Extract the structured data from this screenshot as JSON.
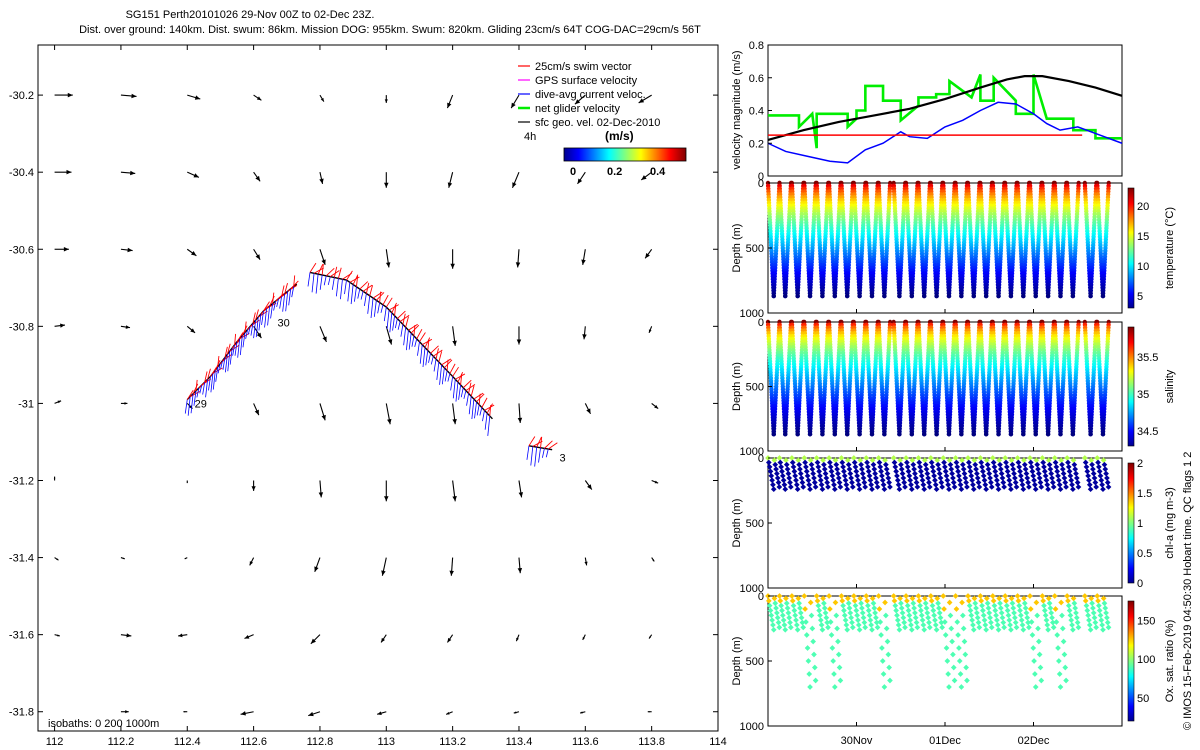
{
  "header": {
    "line1": "SG151 Perth20101026 29-Nov 00Z to 02-Dec 23Z.",
    "line2": "Dist. over ground: 140km. Dist. swum: 86km. Mission DOG: 955km. Swum: 820km. Gliding 23cm/s 64T COG-DAC=29cm/s 56T"
  },
  "colors": {
    "swim": "#ff0000",
    "gps": "#ff00ff",
    "dac": "#0000ff",
    "net": "#00ee00",
    "geo": "#000000"
  },
  "chart_data": [
    {
      "name": "track_map",
      "type": "scatter",
      "xlim": [
        111.95,
        114.0
      ],
      "ylim": [
        -31.85,
        -30.07
      ],
      "xticks": [
        112,
        112.2,
        112.4,
        112.6,
        112.8,
        113,
        113.2,
        113.4,
        113.6,
        113.8,
        114
      ],
      "xtick_labels": [
        "112",
        "112.2",
        "112.4",
        "112.6",
        "112.8",
        "113",
        "113.2",
        "113.4",
        "113.6",
        "113.8",
        "114"
      ],
      "yticks": [
        -30.2,
        -30.4,
        -30.6,
        -30.8,
        -31,
        -31.2,
        -31.4,
        -31.6,
        -31.8
      ],
      "ytick_labels": [
        "-30.2",
        "-30.4",
        "-30.6",
        "-30.8",
        "-31",
        "-31.2",
        "-31.4",
        "-31.6",
        "-31.8"
      ],
      "legend": [
        {
          "label": "25cm/s swim vector",
          "color": "#ff0000"
        },
        {
          "label": "GPS surface velocity",
          "color": "#ff00ff"
        },
        {
          "label": "dive-avg current veloc.",
          "color": "#0000ff"
        },
        {
          "label": "net glider velocity",
          "color": "#00ee00"
        },
        {
          "label": "sfc geo. vel. 02-Dec-2010",
          "color": "#000000"
        }
      ],
      "legend_position": "top-right",
      "colorbar": {
        "label": "(m/s)",
        "ticks": [
          "0",
          "0.2",
          "0.4"
        ],
        "note": "4h"
      },
      "isobath_note": "isobaths: 0    200   1000m",
      "track_segments": [
        {
          "points": [
            [
              112.4,
              -30.99
            ],
            [
              112.47,
              -30.93
            ],
            [
              112.55,
              -30.84
            ],
            [
              112.63,
              -30.76
            ],
            [
              112.73,
              -30.69
            ]
          ]
        },
        {
          "points": [
            [
              112.77,
              -30.66
            ],
            [
              112.88,
              -30.68
            ],
            [
              113.0,
              -30.75
            ],
            [
              113.1,
              -30.84
            ],
            [
              113.2,
              -30.93
            ],
            [
              113.32,
              -31.04
            ]
          ]
        },
        {
          "points": [
            [
              113.43,
              -31.11
            ],
            [
              113.5,
              -31.12
            ]
          ]
        }
      ],
      "day_labels": [
        {
          "text": "29",
          "lon": 112.41,
          "lat": -31.0
        },
        {
          "text": "30",
          "lon": 112.66,
          "lat": -30.79
        },
        {
          "text": "3",
          "lon": 113.51,
          "lat": -31.14
        }
      ],
      "geo_vectors": [
        {
          "lon": 112.0,
          "lat": -30.2,
          "u": 0.14,
          "v": 0.0
        },
        {
          "lon": 112.2,
          "lat": -30.2,
          "u": 0.12,
          "v": -0.01
        },
        {
          "lon": 112.4,
          "lat": -30.2,
          "u": 0.1,
          "v": -0.03
        },
        {
          "lon": 112.6,
          "lat": -30.2,
          "u": 0.06,
          "v": -0.04
        },
        {
          "lon": 112.8,
          "lat": -30.2,
          "u": 0.03,
          "v": -0.05
        },
        {
          "lon": 113.0,
          "lat": -30.2,
          "u": 0.0,
          "v": -0.06
        },
        {
          "lon": 113.2,
          "lat": -30.2,
          "u": -0.04,
          "v": -0.1
        },
        {
          "lon": 113.4,
          "lat": -30.2,
          "u": -0.06,
          "v": -0.1
        },
        {
          "lon": 113.6,
          "lat": -30.2,
          "u": -0.08,
          "v": -0.07
        },
        {
          "lon": 113.8,
          "lat": -30.2,
          "u": -0.1,
          "v": -0.06
        },
        {
          "lon": 112.0,
          "lat": -30.4,
          "u": 0.13,
          "v": 0.0
        },
        {
          "lon": 112.2,
          "lat": -30.4,
          "u": 0.11,
          "v": -0.01
        },
        {
          "lon": 112.4,
          "lat": -30.4,
          "u": 0.09,
          "v": -0.04
        },
        {
          "lon": 112.6,
          "lat": -30.4,
          "u": 0.05,
          "v": -0.07
        },
        {
          "lon": 112.8,
          "lat": -30.4,
          "u": 0.02,
          "v": -0.09
        },
        {
          "lon": 113.0,
          "lat": -30.4,
          "u": 0.0,
          "v": -0.12
        },
        {
          "lon": 113.2,
          "lat": -30.4,
          "u": -0.03,
          "v": -0.12
        },
        {
          "lon": 113.4,
          "lat": -30.4,
          "u": -0.05,
          "v": -0.12
        },
        {
          "lon": 113.6,
          "lat": -30.4,
          "u": -0.06,
          "v": -0.09
        },
        {
          "lon": 113.8,
          "lat": -30.4,
          "u": -0.08,
          "v": -0.06
        },
        {
          "lon": 112.0,
          "lat": -30.6,
          "u": 0.11,
          "v": 0.0
        },
        {
          "lon": 112.2,
          "lat": -30.6,
          "u": 0.09,
          "v": -0.01
        },
        {
          "lon": 112.4,
          "lat": -30.6,
          "u": 0.07,
          "v": -0.05
        },
        {
          "lon": 112.6,
          "lat": -30.6,
          "u": 0.05,
          "v": -0.08
        },
        {
          "lon": 112.8,
          "lat": -30.6,
          "u": 0.04,
          "v": -0.12
        },
        {
          "lon": 113.0,
          "lat": -30.6,
          "u": 0.02,
          "v": -0.14
        },
        {
          "lon": 113.2,
          "lat": -30.6,
          "u": 0.0,
          "v": -0.15
        },
        {
          "lon": 113.4,
          "lat": -30.6,
          "u": -0.01,
          "v": -0.14
        },
        {
          "lon": 113.6,
          "lat": -30.6,
          "u": -0.02,
          "v": -0.12
        },
        {
          "lon": 113.8,
          "lat": -30.6,
          "u": -0.05,
          "v": -0.07
        },
        {
          "lon": 112.0,
          "lat": -30.8,
          "u": 0.08,
          "v": 0.01
        },
        {
          "lon": 112.2,
          "lat": -30.8,
          "u": 0.07,
          "v": -0.01
        },
        {
          "lon": 112.4,
          "lat": -30.8,
          "u": 0.06,
          "v": -0.05
        },
        {
          "lon": 112.6,
          "lat": -30.8,
          "u": 0.06,
          "v": -0.09
        },
        {
          "lon": 112.8,
          "lat": -30.8,
          "u": 0.05,
          "v": -0.12
        },
        {
          "lon": 113.0,
          "lat": -30.8,
          "u": 0.04,
          "v": -0.14
        },
        {
          "lon": 113.2,
          "lat": -30.8,
          "u": 0.02,
          "v": -0.15
        },
        {
          "lon": 113.4,
          "lat": -30.8,
          "u": 0.0,
          "v": -0.14
        },
        {
          "lon": 113.6,
          "lat": -30.8,
          "u": -0.01,
          "v": -0.1
        },
        {
          "lon": 113.8,
          "lat": -30.8,
          "u": -0.02,
          "v": -0.05
        },
        {
          "lon": 112.0,
          "lat": -31.0,
          "u": 0.05,
          "v": 0.02
        },
        {
          "lon": 112.2,
          "lat": -31.0,
          "u": 0.05,
          "v": 0.0
        },
        {
          "lon": 112.4,
          "lat": -31.0,
          "u": 0.04,
          "v": -0.04
        },
        {
          "lon": 112.6,
          "lat": -31.0,
          "u": 0.04,
          "v": -0.09
        },
        {
          "lon": 112.8,
          "lat": -31.0,
          "u": 0.04,
          "v": -0.13
        },
        {
          "lon": 113.0,
          "lat": -31.0,
          "u": 0.03,
          "v": -0.16
        },
        {
          "lon": 113.2,
          "lat": -31.0,
          "u": 0.02,
          "v": -0.16
        },
        {
          "lon": 113.4,
          "lat": -31.0,
          "u": 0.01,
          "v": -0.15
        },
        {
          "lon": 113.6,
          "lat": -31.0,
          "u": 0.04,
          "v": -0.08
        },
        {
          "lon": 113.8,
          "lat": -31.0,
          "u": 0.05,
          "v": -0.04
        },
        {
          "lon": 112.0,
          "lat": -31.2,
          "u": 0.0,
          "v": 0.03
        },
        {
          "lon": 112.2,
          "lat": -31.2,
          "u": 0.0,
          "v": 0.0
        },
        {
          "lon": 112.4,
          "lat": -31.2,
          "u": 0.0,
          "v": -0.02
        },
        {
          "lon": 112.6,
          "lat": -31.2,
          "u": 0.0,
          "v": -0.08
        },
        {
          "lon": 112.8,
          "lat": -31.2,
          "u": 0.01,
          "v": -0.13
        },
        {
          "lon": 113.0,
          "lat": -31.2,
          "u": 0.0,
          "v": -0.16
        },
        {
          "lon": 113.2,
          "lat": -31.2,
          "u": 0.02,
          "v": -0.16
        },
        {
          "lon": 113.4,
          "lat": -31.2,
          "u": 0.02,
          "v": -0.13
        },
        {
          "lon": 113.6,
          "lat": -31.2,
          "u": 0.05,
          "v": -0.07
        },
        {
          "lon": 113.8,
          "lat": -31.2,
          "u": 0.05,
          "v": -0.02
        },
        {
          "lon": 112.0,
          "lat": -31.4,
          "u": 0.03,
          "v": -0.02
        },
        {
          "lon": 112.2,
          "lat": -31.4,
          "u": 0.03,
          "v": -0.01
        },
        {
          "lon": 112.4,
          "lat": -31.4,
          "u": -0.02,
          "v": -0.01
        },
        {
          "lon": 112.6,
          "lat": -31.4,
          "u": -0.03,
          "v": -0.06
        },
        {
          "lon": 112.8,
          "lat": -31.4,
          "u": -0.04,
          "v": -0.11
        },
        {
          "lon": 113.0,
          "lat": -31.4,
          "u": -0.03,
          "v": -0.14
        },
        {
          "lon": 113.2,
          "lat": -31.4,
          "u": -0.01,
          "v": -0.14
        },
        {
          "lon": 113.4,
          "lat": -31.4,
          "u": 0.01,
          "v": -0.12
        },
        {
          "lon": 113.6,
          "lat": -31.4,
          "u": 0.01,
          "v": -0.06
        },
        {
          "lon": 113.8,
          "lat": -31.4,
          "u": 0.02,
          "v": -0.03
        },
        {
          "lon": 112.0,
          "lat": -31.6,
          "u": 0.04,
          "v": -0.01
        },
        {
          "lon": 112.2,
          "lat": -31.6,
          "u": 0.08,
          "v": -0.01
        },
        {
          "lon": 112.4,
          "lat": -31.6,
          "u": -0.07,
          "v": -0.01
        },
        {
          "lon": 112.6,
          "lat": -31.6,
          "u": -0.07,
          "v": -0.03
        },
        {
          "lon": 112.8,
          "lat": -31.6,
          "u": -0.07,
          "v": -0.07
        },
        {
          "lon": 113.0,
          "lat": -31.6,
          "u": -0.04,
          "v": -0.06
        },
        {
          "lon": 113.2,
          "lat": -31.6,
          "u": -0.04,
          "v": -0.06
        },
        {
          "lon": 113.4,
          "lat": -31.6,
          "u": -0.02,
          "v": -0.05
        },
        {
          "lon": 113.6,
          "lat": -31.6,
          "u": -0.02,
          "v": -0.04
        },
        {
          "lon": 113.8,
          "lat": -31.6,
          "u": -0.02,
          "v": -0.03
        },
        {
          "lon": 112.2,
          "lat": -31.8,
          "u": 0.06,
          "v": 0.0
        },
        {
          "lon": 112.4,
          "lat": -31.8,
          "u": -0.03,
          "v": 0.0
        },
        {
          "lon": 112.6,
          "lat": -31.8,
          "u": -0.1,
          "v": -0.02
        },
        {
          "lon": 112.8,
          "lat": -31.8,
          "u": -0.09,
          "v": -0.03
        },
        {
          "lon": 113.0,
          "lat": -31.8,
          "u": -0.07,
          "v": -0.02
        },
        {
          "lon": 113.2,
          "lat": -31.8,
          "u": -0.05,
          "v": -0.02
        },
        {
          "lon": 113.4,
          "lat": -31.8,
          "u": -0.04,
          "v": -0.01
        },
        {
          "lon": 113.6,
          "lat": -31.8,
          "u": -0.04,
          "v": -0.01
        },
        {
          "lon": 113.8,
          "lat": -31.8,
          "u": -0.03,
          "v": 0.0
        }
      ]
    },
    {
      "name": "velocity_timeseries",
      "type": "line",
      "ylabel": "velocity magnitude (m/s)",
      "ylim": [
        0,
        0.8
      ],
      "yticks": [
        0,
        0.2,
        0.4,
        0.6,
        0.8
      ],
      "ytick_labels": [
        "0",
        "0.2",
        "0.4",
        "0.6",
        "0.8"
      ],
      "xlim": [
        0,
        4
      ],
      "series": [
        {
          "name": "net glider velocity",
          "color": "#00ee00",
          "x": [
            0,
            0.35,
            0.35,
            0.5,
            0.55,
            0.55,
            0.9,
            0.9,
            1.0,
            1.0,
            1.1,
            1.1,
            1.3,
            1.3,
            1.5,
            1.5,
            1.7,
            1.7,
            1.9,
            1.9,
            2.05,
            2.05,
            2.3,
            2.3,
            2.4,
            2.4,
            2.55,
            2.55,
            2.8,
            2.8,
            3.0,
            3.0,
            3.15,
            3.15,
            3.45,
            3.45,
            3.7,
            3.7,
            4.0
          ],
          "y": [
            0.37,
            0.37,
            0.3,
            0.38,
            0.17,
            0.38,
            0.38,
            0.3,
            0.35,
            0.4,
            0.4,
            0.55,
            0.55,
            0.46,
            0.46,
            0.34,
            0.43,
            0.48,
            0.48,
            0.5,
            0.5,
            0.58,
            0.48,
            0.48,
            0.62,
            0.46,
            0.46,
            0.6,
            0.46,
            0.38,
            0.38,
            0.62,
            0.35,
            0.35,
            0.35,
            0.28,
            0.28,
            0.23,
            0.23
          ]
        },
        {
          "name": "dive-avg current veloc.",
          "color": "#0000ff",
          "x": [
            0,
            0.2,
            0.45,
            0.7,
            0.9,
            1.1,
            1.3,
            1.5,
            1.6,
            1.8,
            2.0,
            2.2,
            2.4,
            2.6,
            2.8,
            3.0,
            3.15,
            3.3,
            3.5,
            3.7,
            4.0
          ],
          "y": [
            0.2,
            0.15,
            0.12,
            0.09,
            0.08,
            0.16,
            0.2,
            0.27,
            0.24,
            0.23,
            0.3,
            0.34,
            0.4,
            0.45,
            0.44,
            0.38,
            0.32,
            0.28,
            0.3,
            0.26,
            0.2
          ]
        },
        {
          "name": "sfc geo. vel.",
          "color": "#000000",
          "x": [
            0,
            0.4,
            0.8,
            1.2,
            1.6,
            2.0,
            2.4,
            2.7,
            2.9,
            3.1,
            3.4,
            3.7,
            4.0
          ],
          "y": [
            0.22,
            0.28,
            0.33,
            0.37,
            0.41,
            0.47,
            0.54,
            0.59,
            0.61,
            0.61,
            0.58,
            0.54,
            0.49
          ]
        },
        {
          "name": "25cm/s swim vector",
          "color": "#ff0000",
          "x": [
            0,
            3.55
          ],
          "y": [
            0.25,
            0.25
          ]
        }
      ]
    },
    {
      "name": "depth_sections",
      "type": "scatter",
      "xlim": [
        0,
        4
      ],
      "xticks": [
        1,
        2,
        3
      ],
      "xtick_labels": [
        "30Nov",
        "01Dec",
        "02Dec"
      ],
      "ylabel": "Depth (m)",
      "yticks": [
        0,
        500,
        1000
      ],
      "ytick_labels": [
        "0",
        "500",
        "1000"
      ],
      "dive_starts": [
        0.0,
        0.13,
        0.27,
        0.41,
        0.55,
        0.69,
        0.83,
        0.97,
        1.11,
        1.25,
        1.42,
        1.56,
        1.7,
        1.84,
        1.98,
        2.12,
        2.26,
        2.4,
        2.54,
        2.68,
        2.82,
        2.96,
        3.1,
        3.24,
        3.38,
        3.58,
        3.72
      ],
      "panels": [
        {
          "name": "temperature",
          "cbar_label": "temperature (°C)",
          "cbar_ticks": [
            "5",
            "10",
            "15",
            "20"
          ],
          "range": [
            3,
            23
          ]
        },
        {
          "name": "salinity",
          "cbar_label": "salinity",
          "cbar_ticks": [
            "34.5",
            "35",
            "35.5"
          ],
          "range": [
            34.3,
            35.9
          ]
        },
        {
          "name": "chl-a",
          "cbar_label": "chl-a (mg m-3)",
          "cbar_ticks": [
            "0",
            "0.5",
            "1",
            "1.5",
            "2"
          ],
          "range": [
            0,
            2
          ]
        },
        {
          "name": "oxygen",
          "cbar_label": "Ox. sat. ratio (%)",
          "cbar_ticks": [
            "50",
            "100",
            "150"
          ],
          "range": [
            20,
            175
          ]
        }
      ]
    }
  ],
  "footer": {
    "credit": "© IMOS 15-Feb-2019 04:50:30 Hobart time. QC flags 1  2"
  }
}
